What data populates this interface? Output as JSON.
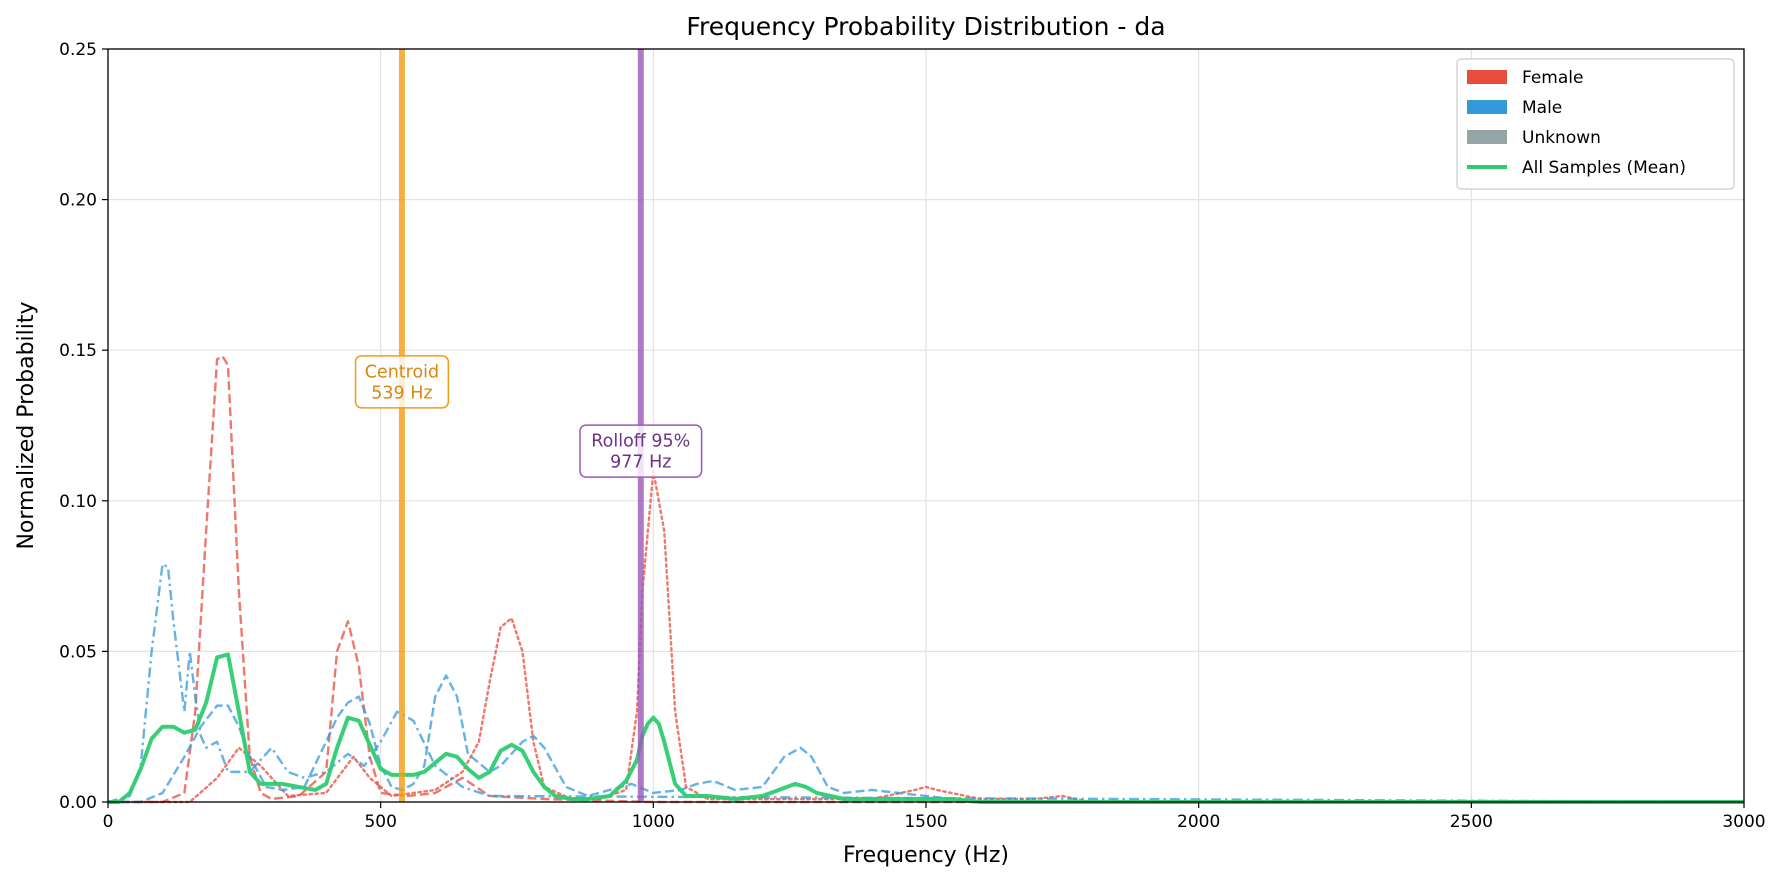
{
  "chart_data": {
    "type": "line",
    "title": "Frequency Probability Distribution - da",
    "xlabel": "Frequency (Hz)",
    "ylabel": "Normalized Probability",
    "xlim": [
      0,
      3000
    ],
    "ylim": [
      0,
      0.25
    ],
    "x_ticks": [
      0,
      500,
      1000,
      1500,
      2000,
      2500,
      3000
    ],
    "x_tick_labels": [
      "0",
      "500",
      "1000",
      "1500",
      "2000",
      "2500",
      "3000"
    ],
    "y_ticks": [
      0,
      0.05,
      0.1,
      0.15,
      0.2,
      0.25
    ],
    "y_tick_labels": [
      "0.00",
      "0.05",
      "0.10",
      "0.15",
      "0.20",
      "0.25"
    ],
    "grid": true,
    "legend_position": "top-right",
    "legend": [
      {
        "label": "Female",
        "kind": "patch",
        "color": "#e74c3c"
      },
      {
        "label": "Male",
        "kind": "patch",
        "color": "#3498db"
      },
      {
        "label": "Unknown",
        "kind": "patch",
        "color": "#95a5a6"
      },
      {
        "label": "All Samples (Mean)",
        "kind": "line",
        "color": "#2ecc71"
      }
    ],
    "vlines": [
      {
        "x": 539,
        "color": "#f39c12",
        "label_lines": [
          "Centroid",
          "539 Hz"
        ],
        "label_y": 0.1395,
        "text_color": "#d68910"
      },
      {
        "x": 977,
        "color": "#9b59b6",
        "label_lines": [
          "Rolloff 95%",
          "977 Hz"
        ],
        "label_y": 0.1165,
        "text_color": "#6c3483"
      }
    ],
    "series": [
      {
        "color": "#e74c3c",
        "dash": "dashed",
        "x": [
          0,
          100,
          140,
          160,
          180,
          200,
          210,
          220,
          240,
          260,
          280,
          300,
          350,
          400,
          420,
          440,
          460,
          480,
          500,
          550,
          600,
          650,
          700,
          800,
          1000,
          1500,
          3000
        ],
        "y": [
          0,
          0,
          0.003,
          0.03,
          0.09,
          0.147,
          0.148,
          0.145,
          0.07,
          0.015,
          0.003,
          0.001,
          0.002,
          0.01,
          0.05,
          0.06,
          0.045,
          0.015,
          0.003,
          0.002,
          0.003,
          0.008,
          0.002,
          0.001,
          0,
          0,
          0
        ]
      },
      {
        "color": "#e74c3c",
        "dash": "dotted",
        "x": [
          0,
          150,
          200,
          240,
          280,
          330,
          400,
          450,
          480,
          520,
          600,
          650,
          680,
          700,
          720,
          740,
          760,
          780,
          800,
          850,
          900,
          950,
          970,
          980,
          1000,
          1020,
          1040,
          1060,
          1100,
          1400,
          1480,
          1500,
          1520,
          1600,
          1700,
          1750,
          1800,
          3000
        ],
        "y": [
          0,
          0,
          0.008,
          0.018,
          0.012,
          0.002,
          0.003,
          0.015,
          0.008,
          0.002,
          0.004,
          0.01,
          0.02,
          0.04,
          0.058,
          0.061,
          0.05,
          0.02,
          0.005,
          0.001,
          0.001,
          0.004,
          0.03,
          0.07,
          0.11,
          0.09,
          0.03,
          0.005,
          0.001,
          0.001,
          0.004,
          0.005,
          0.004,
          0.001,
          0.001,
          0.002,
          0,
          0
        ]
      },
      {
        "color": "#3498db",
        "dash": "dashed",
        "x": [
          0,
          60,
          100,
          140,
          170,
          200,
          220,
          240,
          260,
          290,
          320,
          360,
          400,
          420,
          440,
          460,
          480,
          500,
          520,
          540,
          560,
          580,
          600,
          620,
          640,
          660,
          700,
          720,
          740,
          760,
          780,
          800,
          840,
          880,
          920,
          960,
          1000,
          1050,
          1080,
          1110,
          1150,
          1200,
          1240,
          1270,
          1290,
          1320,
          1350,
          1400,
          1450,
          1500,
          1550,
          1600,
          3000
        ],
        "y": [
          0,
          0,
          0.003,
          0.015,
          0.025,
          0.032,
          0.032,
          0.025,
          0.015,
          0.005,
          0.004,
          0.005,
          0.02,
          0.028,
          0.033,
          0.035,
          0.026,
          0.012,
          0.005,
          0.004,
          0.006,
          0.012,
          0.035,
          0.042,
          0.035,
          0.016,
          0.01,
          0.012,
          0.016,
          0.02,
          0.022,
          0.018,
          0.005,
          0.002,
          0.004,
          0.006,
          0.003,
          0.004,
          0.006,
          0.007,
          0.004,
          0.005,
          0.015,
          0.018,
          0.015,
          0.005,
          0.003,
          0.004,
          0.003,
          0.002,
          0.001,
          0,
          0
        ]
      },
      {
        "color": "#3498db",
        "dash": "dashdot",
        "x": [
          0,
          40,
          60,
          80,
          100,
          110,
          120,
          140,
          150,
          160,
          170,
          180,
          200,
          220,
          260,
          300,
          330,
          360,
          400,
          440,
          470,
          500,
          530,
          560,
          600,
          650,
          700,
          3000
        ],
        "y": [
          0,
          0.002,
          0.012,
          0.05,
          0.079,
          0.078,
          0.06,
          0.03,
          0.05,
          0.035,
          0.022,
          0.018,
          0.02,
          0.01,
          0.01,
          0.018,
          0.01,
          0.008,
          0.01,
          0.016,
          0.012,
          0.02,
          0.03,
          0.027,
          0.012,
          0.005,
          0.002,
          0
        ]
      },
      {
        "color": "#2ecc71",
        "dash": "solid",
        "bold": true,
        "x": [
          0,
          20,
          40,
          60,
          80,
          100,
          120,
          140,
          160,
          180,
          200,
          220,
          240,
          260,
          280,
          300,
          320,
          350,
          380,
          400,
          420,
          440,
          460,
          480,
          500,
          520,
          560,
          580,
          600,
          620,
          640,
          660,
          680,
          700,
          720,
          740,
          760,
          780,
          800,
          820,
          850,
          880,
          920,
          950,
          970,
          980,
          990,
          1000,
          1010,
          1020,
          1040,
          1060,
          1080,
          1100,
          1150,
          1200,
          1230,
          1260,
          1280,
          1300,
          1350,
          1400,
          1450,
          1500,
          1550,
          1600,
          2000,
          3000
        ],
        "y": [
          0,
          0,
          0.003,
          0.011,
          0.021,
          0.025,
          0.025,
          0.023,
          0.024,
          0.033,
          0.048,
          0.049,
          0.03,
          0.01,
          0.006,
          0.006,
          0.006,
          0.005,
          0.004,
          0.006,
          0.018,
          0.028,
          0.027,
          0.019,
          0.011,
          0.009,
          0.009,
          0.01,
          0.013,
          0.016,
          0.015,
          0.011,
          0.008,
          0.01,
          0.017,
          0.019,
          0.017,
          0.01,
          0.005,
          0.002,
          0.001,
          0.001,
          0.002,
          0.007,
          0.014,
          0.022,
          0.026,
          0.028,
          0.026,
          0.02,
          0.006,
          0.002,
          0.002,
          0.002,
          0.001,
          0.002,
          0.004,
          0.006,
          0.005,
          0.003,
          0.001,
          0.001,
          0.001,
          0.001,
          0.001,
          0,
          0,
          0
        ]
      }
    ]
  }
}
